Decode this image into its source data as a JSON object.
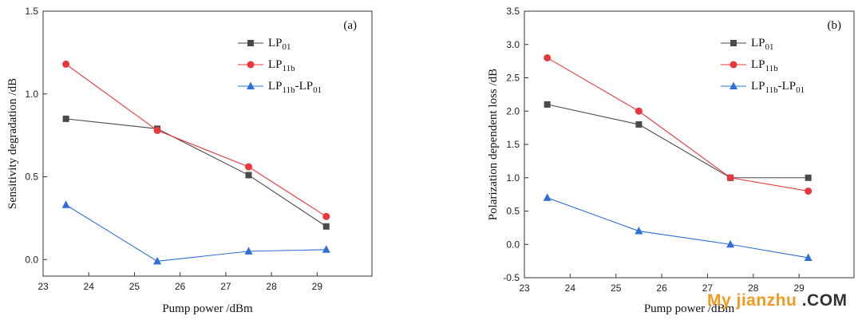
{
  "watermark": {
    "brand": "My jianzhu",
    "suffix": ".COM"
  },
  "colors": {
    "LP01": "#4a4a4a",
    "LP11b": "#e8383d",
    "diff": "#2e6fd6"
  },
  "chart_data": [
    {
      "type": "line",
      "panel_tag": "(a)",
      "xlabel": "Pump power /dBm",
      "ylabel": "Sensitivity degradation /dB",
      "xlim": [
        23,
        30.2
      ],
      "ylim": [
        -0.1,
        1.5
      ],
      "xticks": [
        23,
        24,
        25,
        26,
        27,
        28,
        29
      ],
      "yticks": [
        0.0,
        0.5,
        1.0,
        1.5
      ],
      "ytick_labels": [
        "0.0",
        "0.5",
        "1.0",
        "1.5"
      ],
      "x": [
        23.5,
        25.5,
        27.5,
        29.2
      ],
      "legend_position": "top-right",
      "series": [
        {
          "key": "LP01",
          "name_main": "LP",
          "name_sub": "01",
          "name_after": "",
          "name_sub2": "",
          "marker": "square",
          "color": "#4a4a4a",
          "values": [
            0.85,
            0.79,
            0.51,
            0.2
          ]
        },
        {
          "key": "LP11b",
          "name_main": "LP",
          "name_sub": "11b",
          "name_after": "",
          "name_sub2": "",
          "marker": "circle",
          "color": "#e8383d",
          "values": [
            1.18,
            0.78,
            0.56,
            0.26
          ]
        },
        {
          "key": "diff",
          "name_main": "LP",
          "name_sub": "11b",
          "name_after": "-LP",
          "name_sub2": "01",
          "marker": "triangle",
          "color": "#2e6fd6",
          "values": [
            0.33,
            -0.01,
            0.05,
            0.06
          ]
        }
      ]
    },
    {
      "type": "line",
      "panel_tag": "(b)",
      "xlabel": "Pump power /dBm",
      "ylabel": "Polarization dependent loss /dB",
      "xlim": [
        23,
        30.2
      ],
      "ylim": [
        -0.5,
        3.5
      ],
      "xticks": [
        23,
        24,
        25,
        26,
        27,
        28,
        29
      ],
      "yticks": [
        -0.5,
        0.0,
        0.5,
        1.0,
        1.5,
        2.0,
        2.5,
        3.0,
        3.5
      ],
      "ytick_labels": [
        "-0.5",
        "0.0",
        "0.5",
        "1.0",
        "1.5",
        "2.0",
        "2.5",
        "3.0",
        "3.5"
      ],
      "x": [
        23.5,
        25.5,
        27.5,
        29.2
      ],
      "legend_position": "top-right",
      "series": [
        {
          "key": "LP01",
          "name_main": "LP",
          "name_sub": "01",
          "name_after": "",
          "name_sub2": "",
          "marker": "square",
          "color": "#4a4a4a",
          "values": [
            2.1,
            1.8,
            1.0,
            1.0
          ]
        },
        {
          "key": "LP11b",
          "name_main": "LP",
          "name_sub": "11b",
          "name_after": "",
          "name_sub2": "",
          "marker": "circle",
          "color": "#e8383d",
          "values": [
            2.8,
            2.0,
            1.0,
            0.8
          ]
        },
        {
          "key": "diff",
          "name_main": "LP",
          "name_sub": "11b",
          "name_after": "-LP",
          "name_sub2": "01",
          "marker": "triangle",
          "color": "#2e6fd6",
          "values": [
            0.7,
            0.2,
            0.0,
            -0.2
          ]
        }
      ]
    }
  ]
}
